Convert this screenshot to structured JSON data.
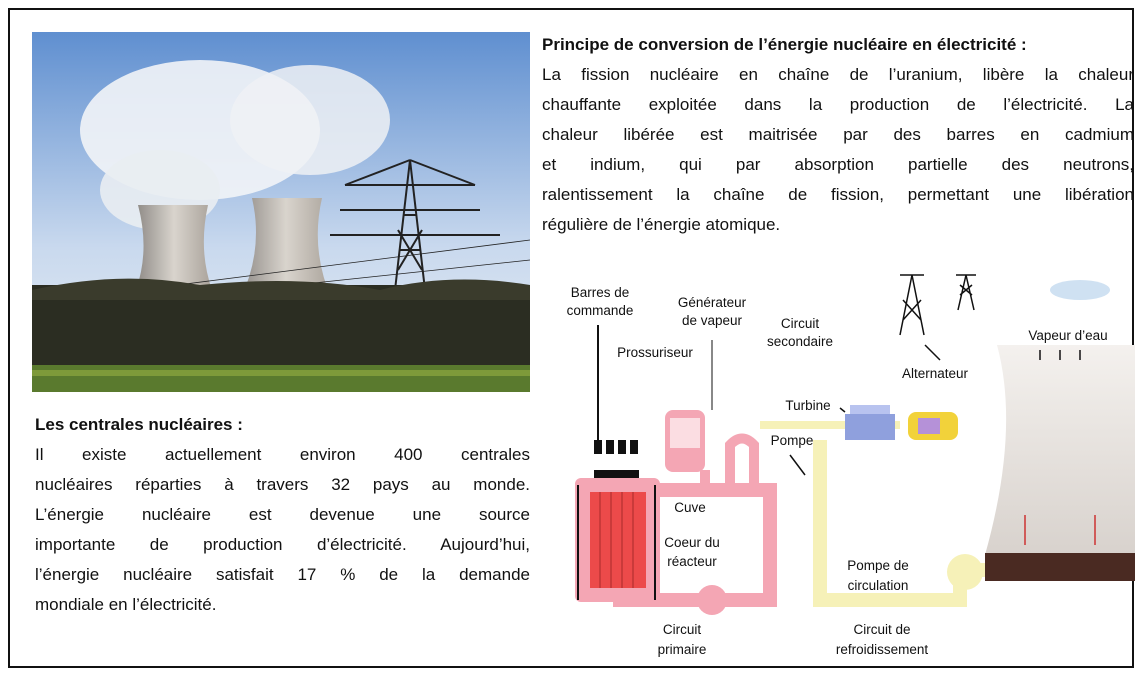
{
  "principle": {
    "title": "Principe de conversion de l’énergie nucléaire en électricité :",
    "lines": [
      "La fission nucléaire en chaîne de l’uranium, libère la chaleur",
      "chauffante exploitée dans la production de l’électricité. La",
      "chaleur libérée est maitrisée  par des barres en cadmium",
      "et indium, qui par absorption partielle des neutrons,",
      "ralentissement la chaîne de fission, permettant une libération",
      "régulière de l’énergie atomique."
    ]
  },
  "plants": {
    "title": "Les centrales nucléaires :",
    "lines": [
      "Il existe actuellement environ 400 centrales",
      "nucléaires réparties à travers 32 pays au monde.",
      "L’énergie nucléaire est devenue une source",
      "importante de production d’électricité. Aujourd’hui,",
      "l’énergie nucléaire satisfait 17 % de la demande",
      "mondiale en l’électricité."
    ]
  },
  "diagram": {
    "control_rods": [
      "Barres de",
      "commande"
    ],
    "steam_generator": [
      "Générateur",
      "de vapeur"
    ],
    "secondary_circuit": [
      "Circuit",
      "secondaire"
    ],
    "pressurizer": "Prossuriseur",
    "alternator": "Alternateur",
    "steam": "Vapeur d’eau",
    "turbine": "Turbine",
    "pump": "Pompe",
    "vessel": "Cuve",
    "core": [
      "Coeur du",
      "réacteur"
    ],
    "circulation_pump": [
      "Pompe de",
      "circulation"
    ],
    "primary_circuit": [
      "Circuit",
      "primaire"
    ],
    "cooling_circuit": [
      "Circuit de",
      "refroidissement"
    ]
  }
}
